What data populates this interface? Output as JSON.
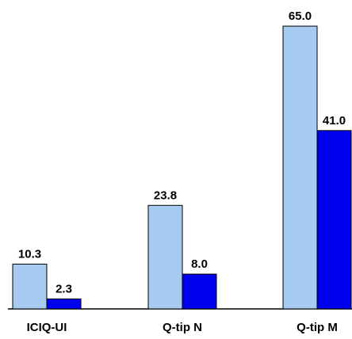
{
  "chart_data": {
    "type": "bar",
    "categories": [
      "ICIQ-UI",
      "Q-tip N",
      "Q-tip M"
    ],
    "series": [
      {
        "values": [
          10.3,
          23.8,
          65.0
        ],
        "value_labels": [
          "10.3",
          "23.8",
          "65.0"
        ],
        "color": "#A6CAF0"
      },
      {
        "values": [
          2.3,
          8.0,
          41.0
        ],
        "value_labels": [
          "2.3",
          "8.0",
          "41.0"
        ],
        "color": "#0000EE"
      }
    ],
    "title": "",
    "xlabel": "",
    "ylabel": "",
    "ylim": [
      0,
      65.0
    ],
    "grid": false,
    "legend": "none"
  }
}
